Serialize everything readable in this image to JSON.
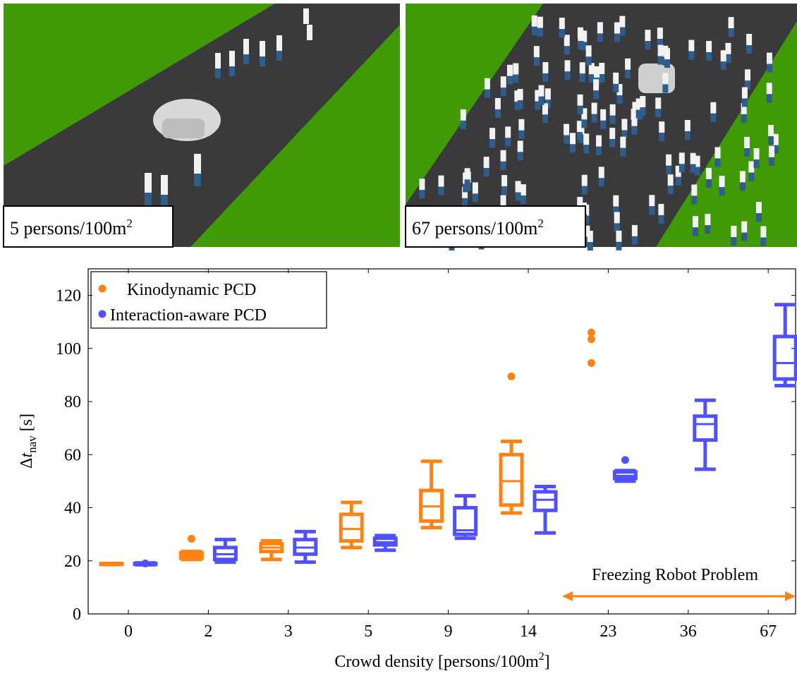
{
  "images": [
    {
      "caption": [
        "5 persons/100m",
        "2"
      ]
    },
    {
      "caption": [
        "67 persons/100m",
        "2"
      ]
    }
  ],
  "chart_data": {
    "type": "box",
    "x_label": [
      "Crowd density [persons/100m",
      "2",
      "]"
    ],
    "y_label": [
      "Δ",
      "t",
      "nav",
      " [s]"
    ],
    "categories": [
      "0",
      "2",
      "3",
      "5",
      "9",
      "14",
      "23",
      "36",
      "67"
    ],
    "ylim": [
      0,
      130
    ],
    "yticks": [
      0,
      20,
      40,
      60,
      80,
      100,
      120
    ],
    "grid": false,
    "legend": "top-left",
    "annotation": "Freezing Robot Problem",
    "series": [
      {
        "name": "Kinodynamic PCD",
        "color": "#ff8214",
        "min": [
          18.6,
          20.5,
          20.5,
          25,
          32.5,
          38,
          null,
          null,
          null
        ],
        "q1": [
          18.7,
          21,
          23.5,
          27.5,
          35,
          41,
          null,
          null,
          null
        ],
        "median": [
          18.8,
          22,
          25,
          32,
          40.5,
          50,
          null,
          null,
          null
        ],
        "q3": [
          18.9,
          23,
          26.5,
          37.5,
          46.5,
          60,
          null,
          null,
          null
        ],
        "max": [
          19,
          23.5,
          27.5,
          42,
          57.5,
          65,
          null,
          null,
          null
        ],
        "outliers": [
          [],
          [
            28.3
          ],
          [],
          [],
          [],
          [
            89.5
          ],
          [
            94.5,
            103.5,
            106
          ],
          [],
          []
        ]
      },
      {
        "name": "Interaction-aware PCD",
        "color": "#5050ff",
        "min": [
          18.5,
          19.5,
          19.5,
          24,
          28.5,
          30.5,
          50,
          54.5,
          86
        ],
        "q1": [
          18.7,
          20.5,
          22.5,
          26,
          30,
          39,
          51,
          65.5,
          88.5
        ],
        "median": [
          18.8,
          22.5,
          25,
          27,
          31.5,
          43,
          52,
          71.5,
          94.5
        ],
        "q3": [
          19,
          25,
          28,
          28.5,
          40,
          46,
          53.5,
          74.5,
          104.5
        ],
        "max": [
          19.2,
          28,
          31,
          29.5,
          44.5,
          48,
          54,
          80.5,
          116.5
        ],
        "outliers": [
          [
            19
          ],
          [],
          [],
          [],
          [],
          [],
          [
            58
          ],
          [],
          []
        ]
      }
    ]
  }
}
